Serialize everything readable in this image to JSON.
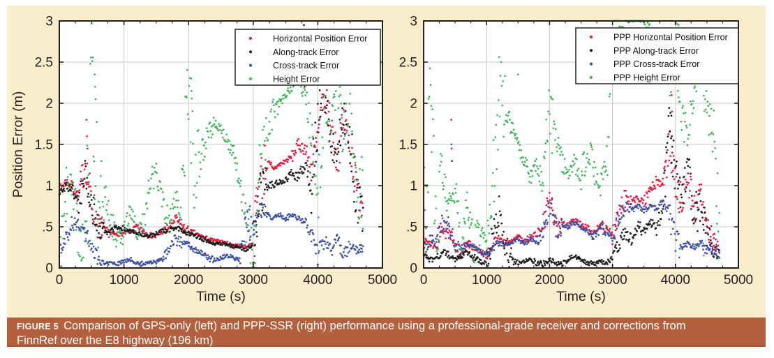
{
  "figure": {
    "caption_label": "FIGURE 5",
    "caption_text": "Comparison of GPS-only (left) and PPP-SSR (right) performance using a professional-grade receiver and corrections from FinnRef over the E8 highway (196 km)",
    "colors": {
      "panel_background": "#f9edcb",
      "caption_background": "#b2603e",
      "caption_text": "#ffffff",
      "plot_background": "#ffffff",
      "grid": "#c9c9c9",
      "frame_and_text": "#231f20",
      "legend_border": "#222222"
    }
  },
  "chart_data": [
    {
      "type": "scatter",
      "title": "",
      "xlabel": "Time (s)",
      "ylabel": "Position Error (m)",
      "xlim": [
        0,
        5000
      ],
      "ylim": [
        0,
        3
      ],
      "xticks": [
        0,
        1000,
        2000,
        3000,
        4000,
        5000
      ],
      "ytick_values": [
        0,
        0.5,
        1,
        1.5,
        2,
        2.5,
        3
      ],
      "ytick_labels": [
        "0",
        ".5",
        "1",
        "1.5",
        "2",
        "2.5",
        "3"
      ],
      "grid": true,
      "legend_position": "top-right",
      "sample_interval_s": 100,
      "series": [
        {
          "name": "Horizontal Position Error",
          "color": "#e8173d",
          "values": [
            0.95,
            1.05,
            1.0,
            0.85,
            1.3,
            0.8,
            0.55,
            0.45,
            0.42,
            0.4,
            0.42,
            0.45,
            0.5,
            0.45,
            0.4,
            0.38,
            0.45,
            0.5,
            0.6,
            0.5,
            0.45,
            0.42,
            0.38,
            0.35,
            0.33,
            0.32,
            0.3,
            0.28,
            0.27,
            0.25,
            0.3,
            1.05,
            1.25,
            1.2,
            1.25,
            1.3,
            1.35,
            1.5,
            1.45,
            1.2,
            1.6,
            2.1,
            1.8,
            1.3,
            1.8,
            1.5,
            0.9,
            0.8
          ],
          "extra_points": [
            [
              420,
              1.8
            ],
            [
              428,
              1.6
            ],
            [
              436,
              1.45
            ]
          ]
        },
        {
          "name": "Along-track Error",
          "color": "#1c1a1a",
          "values": [
            0.9,
            1.0,
            0.95,
            0.8,
            1.15,
            0.75,
            0.5,
            0.42,
            0.45,
            0.5,
            0.48,
            0.45,
            0.42,
            0.4,
            0.38,
            0.42,
            0.45,
            0.45,
            0.5,
            0.45,
            0.42,
            0.4,
            0.36,
            0.33,
            0.3,
            0.3,
            0.28,
            0.26,
            0.25,
            0.22,
            0.28,
            0.9,
            1.0,
            1.0,
            1.05,
            1.05,
            1.15,
            1.1,
            1.25,
            1.0,
            1.8,
            2.2,
            1.6,
            1.4,
            1.9,
            1.6,
            0.8,
            0.5
          ],
          "extra_points": [
            [
              3785,
              2.95
            ],
            [
              3790,
              2.4
            ],
            [
              3795,
              2.2
            ]
          ]
        },
        {
          "name": "Cross-track Error",
          "color": "#3c50a2",
          "values": [
            0.2,
            0.35,
            0.55,
            0.5,
            0.45,
            0.2,
            0.08,
            0.05,
            0.06,
            0.05,
            0.08,
            0.1,
            0.06,
            0.05,
            0.06,
            0.08,
            0.12,
            0.22,
            0.35,
            0.3,
            0.28,
            0.22,
            0.18,
            0.12,
            0.1,
            0.12,
            0.15,
            0.12,
            0.1,
            0.55,
            0.45,
            0.7,
            0.65,
            0.6,
            0.65,
            0.6,
            0.65,
            0.6,
            0.55,
            0.4,
            0.15,
            0.35,
            0.2,
            0.35,
            0.15,
            0.3,
            0.2,
            0.25
          ],
          "extra_points": [
            [
              2950,
              0.75
            ]
          ]
        },
        {
          "name": "Height Error",
          "color": "#3eb457",
          "values": [
            0.1,
            0.9,
            1.05,
            0.4,
            0.2,
            2.3,
            0.7,
            0.95,
            0.6,
            0.3,
            0.45,
            0.7,
            0.45,
            0.55,
            1.0,
            1.15,
            0.8,
            0.55,
            0.85,
            0.6,
            2.2,
            1.0,
            1.4,
            1.65,
            1.75,
            1.7,
            1.55,
            1.35,
            1.05,
            0.5,
            0.15,
            1.1,
            1.6,
            1.9,
            2.0,
            2.1,
            2.2,
            2.3,
            2.1,
            1.6,
            1.0,
            2.2,
            1.8,
            2.2,
            1.5,
            2.3,
            1.2,
            0.8
          ],
          "extra_points": [
            [
              548,
              2.35
            ],
            [
              554,
              2.2
            ],
            [
              560,
              2.05
            ],
            [
              2040,
              2.3
            ],
            [
              2046,
              2.15
            ],
            [
              3055,
              2.3
            ],
            [
              3775,
              3.0
            ],
            [
              4210,
              2.3
            ],
            [
              4420,
              2.25
            ]
          ]
        }
      ]
    },
    {
      "type": "scatter",
      "title": "",
      "xlabel": "Time (s)",
      "ylabel": "",
      "xlim": [
        0,
        5000
      ],
      "ylim": [
        0,
        3
      ],
      "xticks": [
        0,
        1000,
        2000,
        3000,
        4000,
        5000
      ],
      "ytick_values": [
        0,
        0.5,
        1,
        1.5,
        2,
        2.5,
        3
      ],
      "ytick_labels": [
        "0",
        ".5",
        "1",
        "1.5",
        "2",
        "2.5",
        "3"
      ],
      "grid": true,
      "legend_position": "top-right",
      "sample_interval_s": 100,
      "series": [
        {
          "name": "PPP Horizontal Position Error",
          "color": "#e8173d",
          "values": [
            0.35,
            0.3,
            0.25,
            0.5,
            0.45,
            0.25,
            0.2,
            0.3,
            0.25,
            0.2,
            0.15,
            0.3,
            0.35,
            0.3,
            0.32,
            0.38,
            0.32,
            0.38,
            0.42,
            0.5,
            0.85,
            0.5,
            0.55,
            0.52,
            0.58,
            0.52,
            0.48,
            0.4,
            0.52,
            0.48,
            0.4,
            0.65,
            0.85,
            0.8,
            0.85,
            0.8,
            0.95,
            1.05,
            1.0,
            1.5,
            1.0,
            0.8,
            1.1,
            0.7,
            0.9,
            0.55,
            0.35,
            0.25
          ],
          "extra_points": [
            [
              440,
              1.8
            ],
            [
              446,
              1.45
            ],
            [
              452,
              1.3
            ],
            [
              3940,
              2.1
            ],
            [
              3946,
              1.9
            ]
          ]
        },
        {
          "name": "PPP Along-track Error",
          "color": "#1c1a1a",
          "values": [
            0.15,
            0.1,
            0.12,
            0.2,
            0.15,
            0.1,
            0.15,
            0.2,
            0.12,
            0.08,
            0.05,
            0.4,
            0.7,
            0.2,
            0.08,
            0.06,
            0.08,
            0.12,
            0.06,
            0.05,
            0.1,
            0.06,
            0.05,
            0.1,
            0.15,
            0.1,
            0.06,
            0.05,
            0.08,
            0.06,
            0.12,
            0.3,
            0.42,
            0.35,
            0.5,
            0.45,
            0.55,
            0.5,
            0.75,
            1.6,
            1.2,
            0.8,
            1.25,
            0.6,
            0.8,
            0.4,
            0.2,
            0.15
          ],
          "extra_points": [
            [
              3936,
              1.85
            ],
            [
              3942,
              1.6
            ]
          ]
        },
        {
          "name": "PPP Cross-track Error",
          "color": "#3c50a2",
          "values": [
            0.2,
            0.35,
            0.3,
            0.55,
            0.5,
            0.3,
            0.25,
            0.3,
            0.25,
            0.2,
            0.15,
            0.25,
            0.3,
            0.28,
            0.3,
            0.35,
            0.3,
            0.35,
            0.32,
            0.45,
            0.8,
            0.48,
            0.52,
            0.5,
            0.55,
            0.5,
            0.45,
            0.35,
            0.5,
            0.45,
            0.35,
            0.6,
            0.75,
            0.7,
            0.75,
            0.7,
            0.75,
            0.72,
            0.8,
            0.7,
            0.3,
            0.25,
            0.3,
            0.25,
            0.3,
            0.2,
            0.25,
            0.15
          ],
          "extra_points": [
            [
              442,
              1.5
            ],
            [
              448,
              1.3
            ]
          ]
        },
        {
          "name": "PPP Height Error",
          "color": "#3eb457",
          "values": [
            0.5,
            1.9,
            0.6,
            1.05,
            0.8,
            0.9,
            0.3,
            0.75,
            0.25,
            0.5,
            0.4,
            0.9,
            2.2,
            1.9,
            1.7,
            1.5,
            1.3,
            1.1,
            1.25,
            1.0,
            1.9,
            1.6,
            1.3,
            1.1,
            1.3,
            1.05,
            1.5,
            1.2,
            0.9,
            1.3,
            2.6,
            3.0,
            3.0,
            3.0,
            3.0,
            3.0,
            2.9,
            2.8,
            2.5,
            2.2,
            2.9,
            2.0,
            1.7,
            2.1,
            2.5,
            1.9,
            1.6,
            0.4
          ],
          "extra_points": [
            [
              1500,
              2.35
            ],
            [
              2700,
              2.4
            ],
            [
              4050,
              2.95
            ],
            [
              4440,
              0.3
            ],
            [
              4450,
              0.15
            ]
          ]
        }
      ]
    }
  ]
}
